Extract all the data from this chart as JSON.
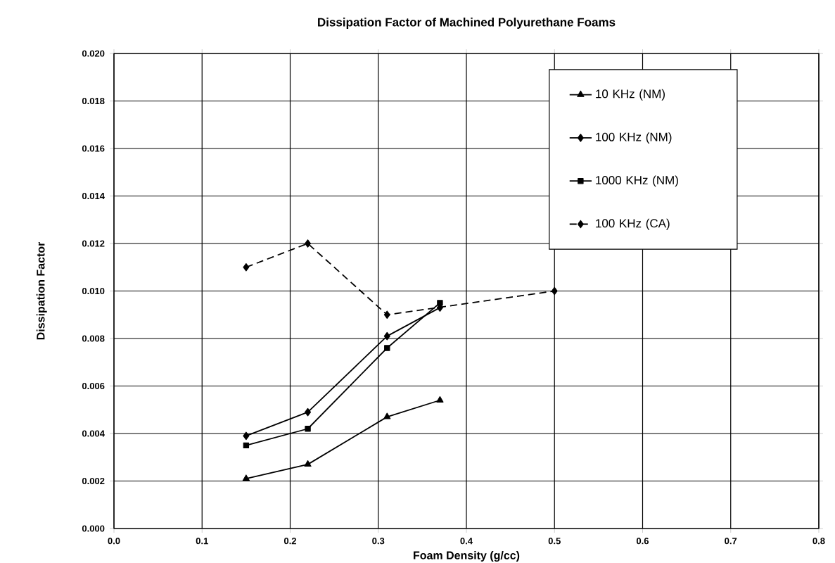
{
  "chart_data": {
    "type": "line",
    "title": "Dissipation Factor of Machined Polyurethane Foams",
    "xlabel": "Foam Density (g/cc)",
    "ylabel": "Dissipation Factor",
    "xlim": [
      0,
      0.8
    ],
    "ylim": [
      0,
      0.02
    ],
    "xticks": [
      {
        "value": 0,
        "label": "0.0"
      },
      {
        "value": 0.1,
        "label": "0.1"
      },
      {
        "value": 0.2,
        "label": "0.2"
      },
      {
        "value": 0.3,
        "label": "0.3"
      },
      {
        "value": 0.4,
        "label": "0.4"
      },
      {
        "value": 0.5,
        "label": "0.5"
      },
      {
        "value": 0.6,
        "label": "0.6"
      },
      {
        "value": 0.7,
        "label": "0.7"
      },
      {
        "value": 0.8,
        "label": "0.8"
      }
    ],
    "yticks": [
      {
        "value": 0,
        "label": "0.000"
      },
      {
        "value": 0.002,
        "label": "0.002"
      },
      {
        "value": 0.004,
        "label": "0.004"
      },
      {
        "value": 0.006,
        "label": "0.006"
      },
      {
        "value": 0.008,
        "label": "0.008"
      },
      {
        "value": 0.01,
        "label": "0.010"
      },
      {
        "value": 0.012,
        "label": "0.012"
      },
      {
        "value": 0.014,
        "label": "0.014"
      },
      {
        "value": 0.016,
        "label": "0.016"
      },
      {
        "value": 0.018,
        "label": "0.018"
      },
      {
        "value": 0.02,
        "label": "0.020"
      }
    ],
    "grid": true,
    "legend": "top right",
    "series": [
      {
        "name": "10 KHz (NM)",
        "color": "#000000",
        "marker": "triangle",
        "line_style": "solid",
        "x": [
          0.15,
          0.22,
          0.31,
          0.37
        ],
        "values": [
          0.0021,
          0.0027,
          0.0047,
          0.0054
        ]
      },
      {
        "name": "100 KHz (NM)",
        "color": "#000000",
        "marker": "diamond",
        "line_style": "solid",
        "x": [
          0.15,
          0.22,
          0.31,
          0.37
        ],
        "values": [
          0.0039,
          0.0049,
          0.0081,
          0.0093
        ]
      },
      {
        "name": "1000 KHz (NM)",
        "color": "#000000",
        "marker": "square",
        "line_style": "solid",
        "x": [
          0.15,
          0.22,
          0.31,
          0.37
        ],
        "values": [
          0.0035,
          0.0042,
          0.0076,
          0.0095
        ]
      },
      {
        "name": "100 KHz (CA)",
        "color": "#000000",
        "marker": "diamond",
        "line_style": "dashed",
        "x": [
          0.15,
          0.22,
          0.31,
          0.5
        ],
        "values": [
          0.011,
          0.012,
          0.009,
          0.01
        ]
      }
    ]
  }
}
